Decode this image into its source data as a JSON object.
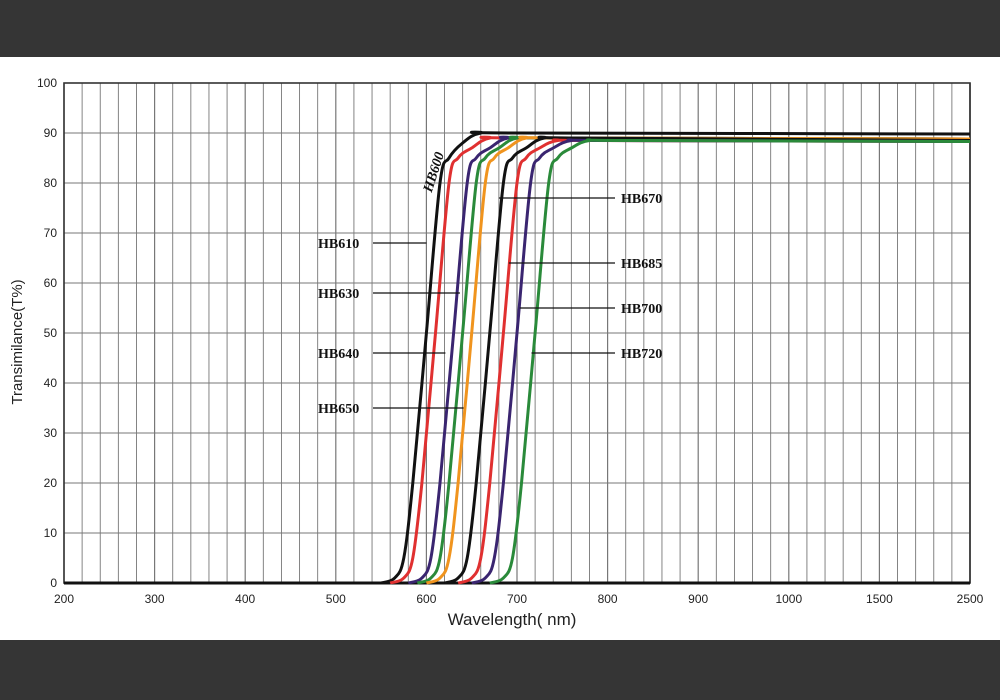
{
  "chart_data": {
    "type": "line",
    "title": "",
    "xlabel": "Wavelength( nm)",
    "ylabel": "Transimilance(T%)",
    "x_ticks": [
      "200",
      "300",
      "400",
      "500",
      "600",
      "700",
      "800",
      "900",
      "1000",
      "1500",
      "2500"
    ],
    "y_ticks": [
      "0",
      "10",
      "20",
      "30",
      "40",
      "50",
      "60",
      "70",
      "80",
      "90",
      "100"
    ],
    "ylim": [
      0,
      100
    ],
    "grid": true,
    "series": [
      {
        "name": "HB600",
        "color": "#111111",
        "x": [
          550,
          565,
          575,
          585,
          600,
          615,
          625,
          640,
          660,
          700,
          2500
        ],
        "y": [
          0,
          1,
          5,
          20,
          50,
          80,
          85,
          88,
          90,
          90,
          89.8
        ]
      },
      {
        "name": "HB610",
        "color": "#e03030",
        "x": [
          560,
          575,
          585,
          595,
          610,
          625,
          635,
          650,
          670,
          710,
          2500
        ],
        "y": [
          0,
          1,
          5,
          20,
          50,
          80,
          85,
          87,
          89,
          89,
          88.8
        ]
      },
      {
        "name": "HB630",
        "color": "#3a2570",
        "x": [
          580,
          595,
          605,
          615,
          630,
          645,
          655,
          670,
          690,
          730,
          2500
        ],
        "y": [
          0,
          1,
          5,
          20,
          50,
          80,
          85,
          87,
          89,
          89,
          88.8
        ]
      },
      {
        "name": "HB640",
        "color": "#2a8a3a",
        "x": [
          590,
          605,
          615,
          625,
          640,
          655,
          665,
          680,
          700,
          740,
          2500
        ],
        "y": [
          0,
          1,
          5,
          20,
          50,
          80,
          85,
          87,
          89,
          89,
          88.8
        ]
      },
      {
        "name": "HB650",
        "color": "#f0941e",
        "x": [
          600,
          615,
          625,
          635,
          650,
          665,
          675,
          690,
          710,
          750,
          2500
        ],
        "y": [
          0,
          1,
          5,
          20,
          50,
          80,
          85,
          87,
          89,
          89,
          88.8
        ]
      },
      {
        "name": "HB670",
        "color": "#111111",
        "x": [
          620,
          635,
          645,
          655,
          670,
          685,
          695,
          710,
          730,
          770,
          2500
        ],
        "y": [
          0,
          1,
          5,
          20,
          50,
          80,
          85,
          87,
          89,
          89,
          88.5
        ]
      },
      {
        "name": "HB685",
        "color": "#e03030",
        "x": [
          635,
          650,
          660,
          670,
          685,
          700,
          710,
          725,
          745,
          785,
          2500
        ],
        "y": [
          0,
          1,
          5,
          20,
          50,
          80,
          85,
          87,
          88.5,
          88.5,
          88.3
        ]
      },
      {
        "name": "HB700",
        "color": "#3a2570",
        "x": [
          650,
          665,
          675,
          685,
          700,
          715,
          725,
          740,
          760,
          800,
          2500
        ],
        "y": [
          0,
          1,
          5,
          20,
          50,
          80,
          85,
          87,
          88.5,
          88.5,
          88.3
        ]
      },
      {
        "name": "HB720",
        "color": "#2a8a3a",
        "x": [
          670,
          685,
          695,
          705,
          720,
          735,
          745,
          760,
          780,
          820,
          2500
        ],
        "y": [
          0,
          1,
          5,
          20,
          50,
          80,
          85,
          87,
          88.5,
          88.5,
          88.3
        ]
      }
    ],
    "annotations": [
      {
        "label": "HB600",
        "x": 610,
        "y": 82,
        "side": "rotated"
      },
      {
        "label": "HB610",
        "x": 600,
        "y": 68,
        "side": "left"
      },
      {
        "label": "HB630",
        "x": 637,
        "y": 58,
        "side": "left"
      },
      {
        "label": "HB640",
        "x": 621,
        "y": 46,
        "side": "left"
      },
      {
        "label": "HB650",
        "x": 641,
        "y": 35,
        "side": "left"
      },
      {
        "label": "HB670",
        "x": 680,
        "y": 77,
        "side": "right"
      },
      {
        "label": "HB685",
        "x": 691,
        "y": 64,
        "side": "right"
      },
      {
        "label": "HB700",
        "x": 703,
        "y": 55,
        "side": "right"
      },
      {
        "label": "HB720",
        "x": 716,
        "y": 46,
        "side": "right"
      }
    ]
  }
}
